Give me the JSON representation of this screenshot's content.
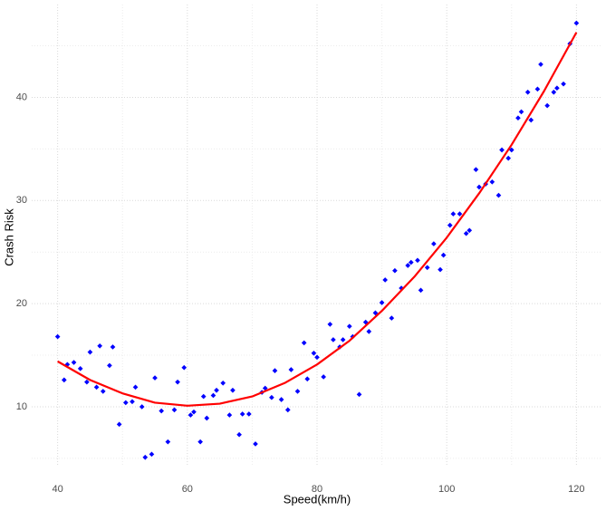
{
  "chart_data": {
    "type": "scatter",
    "x_label": "Speed(km/h)",
    "y_label": "Crash Risk",
    "xlim": [
      36,
      124
    ],
    "ylim": [
      4.2,
      49
    ],
    "xticks": [
      40,
      60,
      80,
      100,
      120
    ],
    "yticks": [
      10,
      20,
      30,
      40
    ],
    "x_minor_grid": [
      50,
      70,
      90,
      110
    ],
    "y_minor_grid": [
      5,
      15,
      25,
      35,
      45
    ],
    "grid": true,
    "series": [
      {
        "type": "scatter",
        "color": "#0000ff",
        "x": [
          40,
          41,
          41.5,
          42.5,
          43.5,
          44.5,
          45,
          46,
          46.5,
          47,
          48,
          48.5,
          49.5,
          50.5,
          51.5,
          52,
          53,
          53.5,
          54.5,
          55,
          56,
          57,
          58,
          58.5,
          59.5,
          60.5,
          61,
          62,
          62.5,
          63,
          64,
          64.5,
          65.5,
          66.5,
          67,
          68,
          68.5,
          69.5,
          70.5,
          71.5,
          72,
          73,
          73.5,
          74.5,
          75.5,
          76,
          77,
          78,
          78.5,
          79.5,
          80,
          81,
          82,
          82.5,
          83.5,
          84,
          85,
          85.5,
          86.5,
          87.5,
          88,
          89,
          90,
          90.5,
          91.5,
          92,
          93,
          94,
          94.5,
          95.5,
          96,
          97,
          98,
          99,
          99.5,
          100.5,
          101,
          102,
          103,
          103.5,
          104.5,
          105,
          106,
          107,
          108,
          108.5,
          109.5,
          110,
          111,
          111.5,
          112.5,
          113,
          114,
          114.5,
          115.5,
          116.5,
          117,
          118,
          119,
          120
        ],
        "values": [
          16.8,
          12.6,
          14.1,
          14.3,
          13.7,
          12.4,
          15.3,
          11.9,
          15.9,
          11.5,
          14,
          15.8,
          8.3,
          10.4,
          10.5,
          11.9,
          10,
          5.1,
          5.4,
          12.8,
          9.6,
          6.6,
          9.7,
          12.4,
          13.8,
          9.2,
          9.5,
          6.6,
          11,
          8.9,
          11.1,
          11.6,
          12.3,
          9.2,
          11.6,
          7.3,
          9.3,
          9.3,
          6.4,
          11.4,
          11.8,
          10.9,
          13.5,
          10.7,
          9.7,
          13.6,
          11.5,
          16.2,
          12.7,
          15.2,
          14.8,
          12.9,
          18,
          16.5,
          15.8,
          16.5,
          17.8,
          16.8,
          11.2,
          18.2,
          17.3,
          19.1,
          20.1,
          22.3,
          18.6,
          23.2,
          21.5,
          23.7,
          24,
          24.2,
          21.3,
          23.5,
          25.8,
          23.3,
          24.7,
          27.6,
          28.7,
          28.7,
          26.8,
          27.1,
          33,
          31.3,
          31.6,
          31.8,
          30.5,
          34.9,
          34.1,
          34.9,
          38,
          38.6,
          40.5,
          37.8,
          40.8,
          43.2,
          39.2,
          40.5,
          40.9,
          41.3,
          45.2,
          47.2
        ]
      },
      {
        "type": "line",
        "color": "#ff0000",
        "x": [
          40,
          45,
          50,
          55,
          60,
          65,
          70,
          75,
          80,
          85,
          90,
          95,
          100,
          105,
          110,
          115,
          120
        ],
        "values": [
          14.4,
          12.6,
          11.3,
          10.4,
          10.1,
          10.3,
          11.0,
          12.3,
          14.1,
          16.4,
          19.3,
          22.6,
          26.4,
          30.7,
          35.4,
          40.6,
          46.3
        ]
      }
    ]
  }
}
